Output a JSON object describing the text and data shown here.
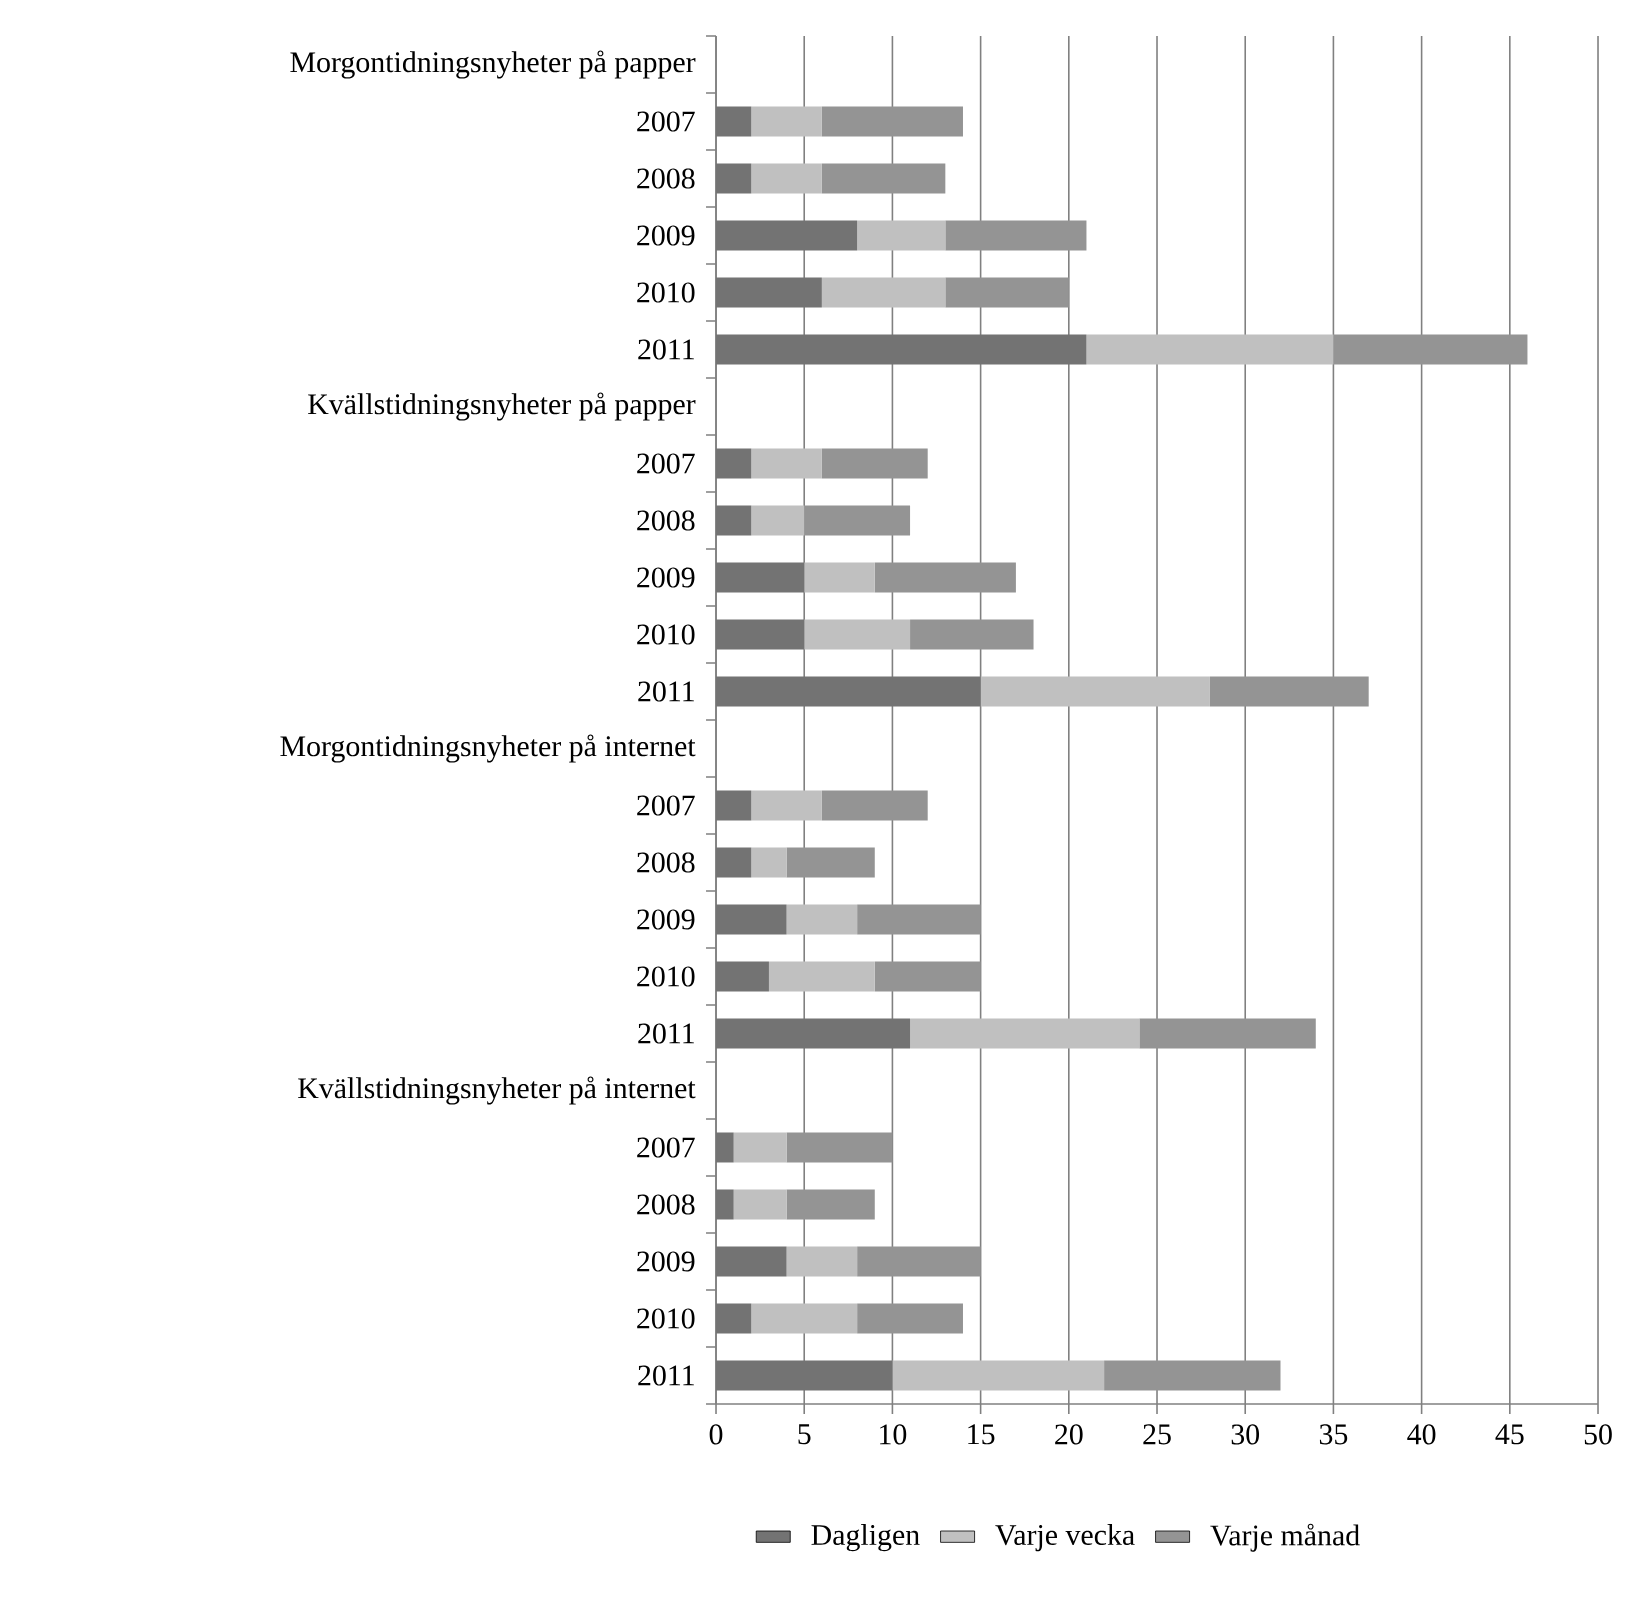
{
  "chart_data": {
    "type": "bar",
    "orientation": "horizontal",
    "stacked": true,
    "categories": [
      "Morgontidningsnyheter på papper",
      "2007",
      "2008",
      "2009",
      "2010",
      "2011",
      "Kvällstidningsnyheter på papper",
      "2007",
      "2008",
      "2009",
      "2010",
      "2011",
      "Morgontidningsnyheter på internet",
      "2007",
      "2008",
      "2009",
      "2010",
      "2011",
      "Kvällstidningsnyheter på internet",
      "2007",
      "2008",
      "2009",
      "2010",
      "2011"
    ],
    "series": [
      {
        "name": "Dagligen",
        "color": "#737373",
        "values": [
          null,
          2,
          2,
          8,
          6,
          21,
          null,
          2,
          2,
          5,
          5,
          15,
          null,
          2,
          2,
          4,
          3,
          11,
          null,
          1,
          1,
          4,
          2,
          10
        ]
      },
      {
        "name": "Varje vecka",
        "color": "#c0c0c0",
        "values": [
          null,
          4,
          4,
          5,
          7,
          14,
          null,
          4,
          3,
          4,
          6,
          13,
          null,
          4,
          2,
          4,
          6,
          13,
          null,
          3,
          3,
          4,
          6,
          12
        ]
      },
      {
        "name": "Varje månad",
        "color": "#949494",
        "values": [
          null,
          8,
          7,
          8,
          7,
          11,
          null,
          6,
          6,
          8,
          7,
          9,
          null,
          6,
          5,
          7,
          6,
          10,
          null,
          6,
          5,
          7,
          6,
          10
        ]
      }
    ],
    "xlim": [
      0,
      50
    ],
    "xticks": [
      0,
      5,
      10,
      15,
      20,
      25,
      30,
      35,
      40,
      45,
      50
    ],
    "grid": "x",
    "legend": "bottom"
  }
}
